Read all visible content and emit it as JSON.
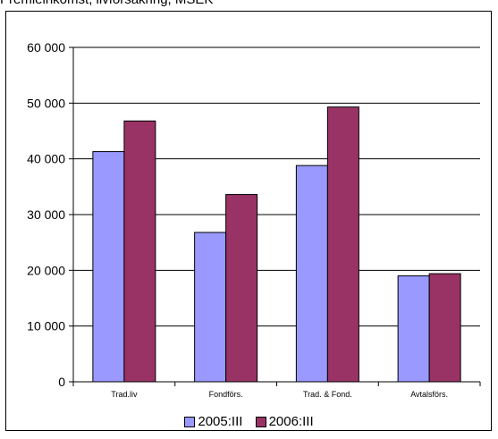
{
  "chart_data": {
    "type": "bar",
    "title": "Premieinkomst, livförsäkring, MSEK",
    "categories": [
      "Trad.liv",
      "Fondförs.",
      "Trad. & Fond.",
      "Avtalsförs."
    ],
    "y_ticks": [
      "0",
      "10 000",
      "20 000",
      "30 000",
      "40 000",
      "50 000",
      "60 000"
    ],
    "ylim": [
      0,
      60000
    ],
    "grid": true,
    "legend_position": "bottom",
    "series": [
      {
        "name": "2005:III",
        "color": "#9999ff",
        "values": [
          41300,
          26800,
          38800,
          19000
        ]
      },
      {
        "name": "2006:III",
        "color": "#993366",
        "values": [
          46800,
          33600,
          49300,
          19400
        ]
      }
    ]
  }
}
